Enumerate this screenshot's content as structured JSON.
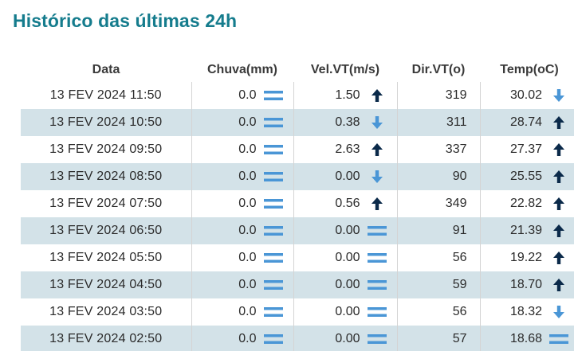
{
  "page_title": "Histórico das últimas 24h",
  "columns": {
    "data": "Data",
    "chuva": "Chuva(mm)",
    "vel": "Vel.VT(m/s)",
    "dir": "Dir.VT(o)",
    "temp": "Temp(oC)"
  },
  "colors": {
    "title": "#157c8d",
    "row_alt_bg": "#d3e2e8",
    "trend_up": "#0b2a4a",
    "trend_down": "#4a96d6",
    "trend_stable": "#4a96d6"
  },
  "rows": [
    {
      "date": "13 FEV 2024 11:50",
      "chuva": "0.0",
      "chuva_trend": "stable",
      "vel": "1.50",
      "vel_trend": "up",
      "dir": "319",
      "temp": "30.02",
      "temp_trend": "down"
    },
    {
      "date": "13 FEV 2024 10:50",
      "chuva": "0.0",
      "chuva_trend": "stable",
      "vel": "0.38",
      "vel_trend": "down",
      "dir": "311",
      "temp": "28.74",
      "temp_trend": "up"
    },
    {
      "date": "13 FEV 2024 09:50",
      "chuva": "0.0",
      "chuva_trend": "stable",
      "vel": "2.63",
      "vel_trend": "up",
      "dir": "337",
      "temp": "27.37",
      "temp_trend": "up"
    },
    {
      "date": "13 FEV 2024 08:50",
      "chuva": "0.0",
      "chuva_trend": "stable",
      "vel": "0.00",
      "vel_trend": "down",
      "dir": "90",
      "temp": "25.55",
      "temp_trend": "up"
    },
    {
      "date": "13 FEV 2024 07:50",
      "chuva": "0.0",
      "chuva_trend": "stable",
      "vel": "0.56",
      "vel_trend": "up",
      "dir": "349",
      "temp": "22.82",
      "temp_trend": "up"
    },
    {
      "date": "13 FEV 2024 06:50",
      "chuva": "0.0",
      "chuva_trend": "stable",
      "vel": "0.00",
      "vel_trend": "stable",
      "dir": "91",
      "temp": "21.39",
      "temp_trend": "up"
    },
    {
      "date": "13 FEV 2024 05:50",
      "chuva": "0.0",
      "chuva_trend": "stable",
      "vel": "0.00",
      "vel_trend": "stable",
      "dir": "56",
      "temp": "19.22",
      "temp_trend": "up"
    },
    {
      "date": "13 FEV 2024 04:50",
      "chuva": "0.0",
      "chuva_trend": "stable",
      "vel": "0.00",
      "vel_trend": "stable",
      "dir": "59",
      "temp": "18.70",
      "temp_trend": "up"
    },
    {
      "date": "13 FEV 2024 03:50",
      "chuva": "0.0",
      "chuva_trend": "stable",
      "vel": "0.00",
      "vel_trend": "stable",
      "dir": "56",
      "temp": "18.32",
      "temp_trend": "down"
    },
    {
      "date": "13 FEV 2024 02:50",
      "chuva": "0.0",
      "chuva_trend": "stable",
      "vel": "0.00",
      "vel_trend": "stable",
      "dir": "57",
      "temp": "18.68",
      "temp_trend": "stable"
    }
  ]
}
